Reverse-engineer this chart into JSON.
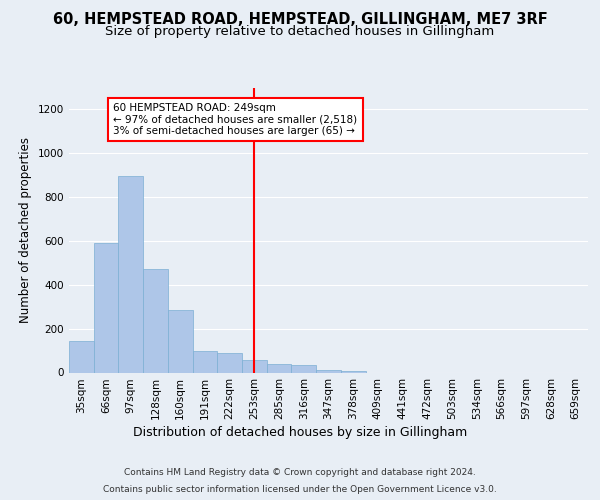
{
  "title_line1": "60, HEMPSTEAD ROAD, HEMPSTEAD, GILLINGHAM, ME7 3RF",
  "title_line2": "Size of property relative to detached houses in Gillingham",
  "xlabel": "Distribution of detached houses by size in Gillingham",
  "ylabel": "Number of detached properties",
  "footnote1": "Contains HM Land Registry data © Crown copyright and database right 2024.",
  "footnote2": "Contains public sector information licensed under the Open Government Licence v3.0.",
  "bin_labels": [
    "35sqm",
    "66sqm",
    "97sqm",
    "128sqm",
    "160sqm",
    "191sqm",
    "222sqm",
    "253sqm",
    "285sqm",
    "316sqm",
    "347sqm",
    "378sqm",
    "409sqm",
    "441sqm",
    "472sqm",
    "503sqm",
    "534sqm",
    "566sqm",
    "597sqm",
    "628sqm",
    "659sqm"
  ],
  "bar_values": [
    145,
    590,
    895,
    470,
    285,
    100,
    90,
    55,
    40,
    35,
    10,
    5,
    0,
    0,
    0,
    0,
    0,
    0,
    0,
    0,
    0
  ],
  "bar_color": "#aec6e8",
  "bar_edge_color": "#7bafd4",
  "vline_x": 7,
  "vline_color": "red",
  "annotation_text": "60 HEMPSTEAD ROAD: 249sqm\n← 97% of detached houses are smaller (2,518)\n3% of semi-detached houses are larger (65) →",
  "annotation_box_color": "white",
  "annotation_box_edge": "red",
  "ylim": [
    0,
    1300
  ],
  "yticks": [
    0,
    200,
    400,
    600,
    800,
    1000,
    1200
  ],
  "background_color": "#e8eef5",
  "plot_bg_color": "#e8eef5",
  "grid_color": "white",
  "title_fontsize": 10.5,
  "subtitle_fontsize": 9.5,
  "axis_label_fontsize": 8.5,
  "tick_fontsize": 7.5,
  "annotation_fontsize": 7.5,
  "footnote_fontsize": 6.5
}
